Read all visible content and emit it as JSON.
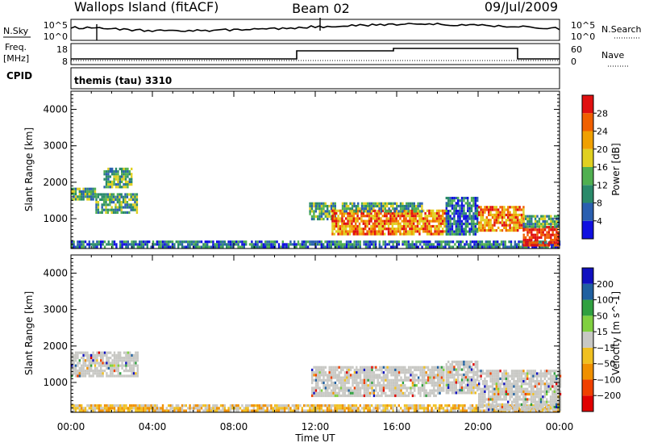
{
  "header": {
    "station": "Wallops Island (fitACF)",
    "beam": "Beam 02",
    "date": "09/Jul/2009"
  },
  "strip_panels": {
    "nsky_label": "N.Sky",
    "nsearch_label": "N.Search",
    "noise_ticks": [
      "10^5",
      "10^0"
    ],
    "freq_label": "Freq.",
    "freq_unit": "[MHz]",
    "freq_ticks": [
      "18",
      "8"
    ],
    "nave_label": "Nave",
    "nave_ticks": [
      "60",
      "0"
    ],
    "cpid_label": "CPID",
    "cpid_text": "themis (tau) 3310"
  },
  "chart_data": [
    {
      "type": "heatmap",
      "name": "power",
      "ylabel": "Slant Range [km]",
      "y_ticks": [
        1000,
        2000,
        3000,
        4000
      ],
      "ylim": [
        180,
        4500
      ],
      "x_ticks": [
        "00:00",
        "04:00",
        "08:00",
        "12:00",
        "16:00",
        "20:00",
        "00:00"
      ],
      "xlim_hours": [
        0,
        24
      ],
      "colorbar": {
        "label": "Power [dB]",
        "ticks": [
          4,
          8,
          12,
          16,
          20,
          24,
          28
        ],
        "range": [
          0,
          32
        ]
      },
      "regions": [
        {
          "t0": 0,
          "t1": 1.2,
          "r0": 1500,
          "r1": 1850,
          "level": "mid"
        },
        {
          "t0": 1.2,
          "t1": 3.2,
          "r0": 1200,
          "r1": 1700,
          "level": "mid"
        },
        {
          "t0": 1.6,
          "t1": 3.0,
          "r0": 1900,
          "r1": 2400,
          "level": "mid"
        },
        {
          "t0": 0,
          "t1": 24,
          "r0": 200,
          "r1": 400,
          "level": "low"
        },
        {
          "t0": 11.7,
          "t1": 13.0,
          "r0": 1000,
          "r1": 1450,
          "level": "mid"
        },
        {
          "t0": 12.8,
          "t1": 18.4,
          "r0": 550,
          "r1": 1250,
          "level": "high"
        },
        {
          "t0": 13.3,
          "t1": 17.2,
          "r0": 1200,
          "r1": 1450,
          "level": "mid"
        },
        {
          "t0": 18.4,
          "t1": 20.0,
          "r0": 600,
          "r1": 1600,
          "level": "low"
        },
        {
          "t0": 20.0,
          "t1": 22.2,
          "r0": 650,
          "r1": 1350,
          "level": "high"
        },
        {
          "t0": 22.2,
          "t1": 24.0,
          "r0": 250,
          "r1": 800,
          "level": "peak"
        },
        {
          "t0": 22.2,
          "t1": 24.0,
          "r0": 800,
          "r1": 1100,
          "level": "mid"
        }
      ]
    },
    {
      "type": "heatmap",
      "name": "velocity",
      "ylabel": "Slant Range [km]",
      "y_ticks": [
        1000,
        2000,
        3000,
        4000
      ],
      "ylim": [
        180,
        4500
      ],
      "x_ticks": [
        "00:00",
        "04:00",
        "08:00",
        "12:00",
        "16:00",
        "20:00",
        "00:00"
      ],
      "xlabel": "Time UT",
      "xlim_hours": [
        0,
        24
      ],
      "colorbar": {
        "label": "Velocity [m s^-1]",
        "ticks": [
          "200",
          "100",
          "50",
          "15",
          "−15",
          "−50",
          "−100",
          "−200"
        ]
      },
      "regions": [
        {
          "t0": 0,
          "t1": 3.3,
          "r0": 1200,
          "r1": 1850,
          "level": "ground"
        },
        {
          "t0": 0,
          "t1": 24,
          "r0": 200,
          "r1": 400,
          "level": "slow"
        },
        {
          "t0": 11.8,
          "t1": 18.3,
          "r0": 600,
          "r1": 1450,
          "level": "ground"
        },
        {
          "t0": 18.4,
          "t1": 20.0,
          "r0": 700,
          "r1": 1600,
          "level": "ground"
        },
        {
          "t0": 20.0,
          "t1": 24.0,
          "r0": 250,
          "r1": 1350,
          "level": "ground"
        }
      ]
    }
  ]
}
